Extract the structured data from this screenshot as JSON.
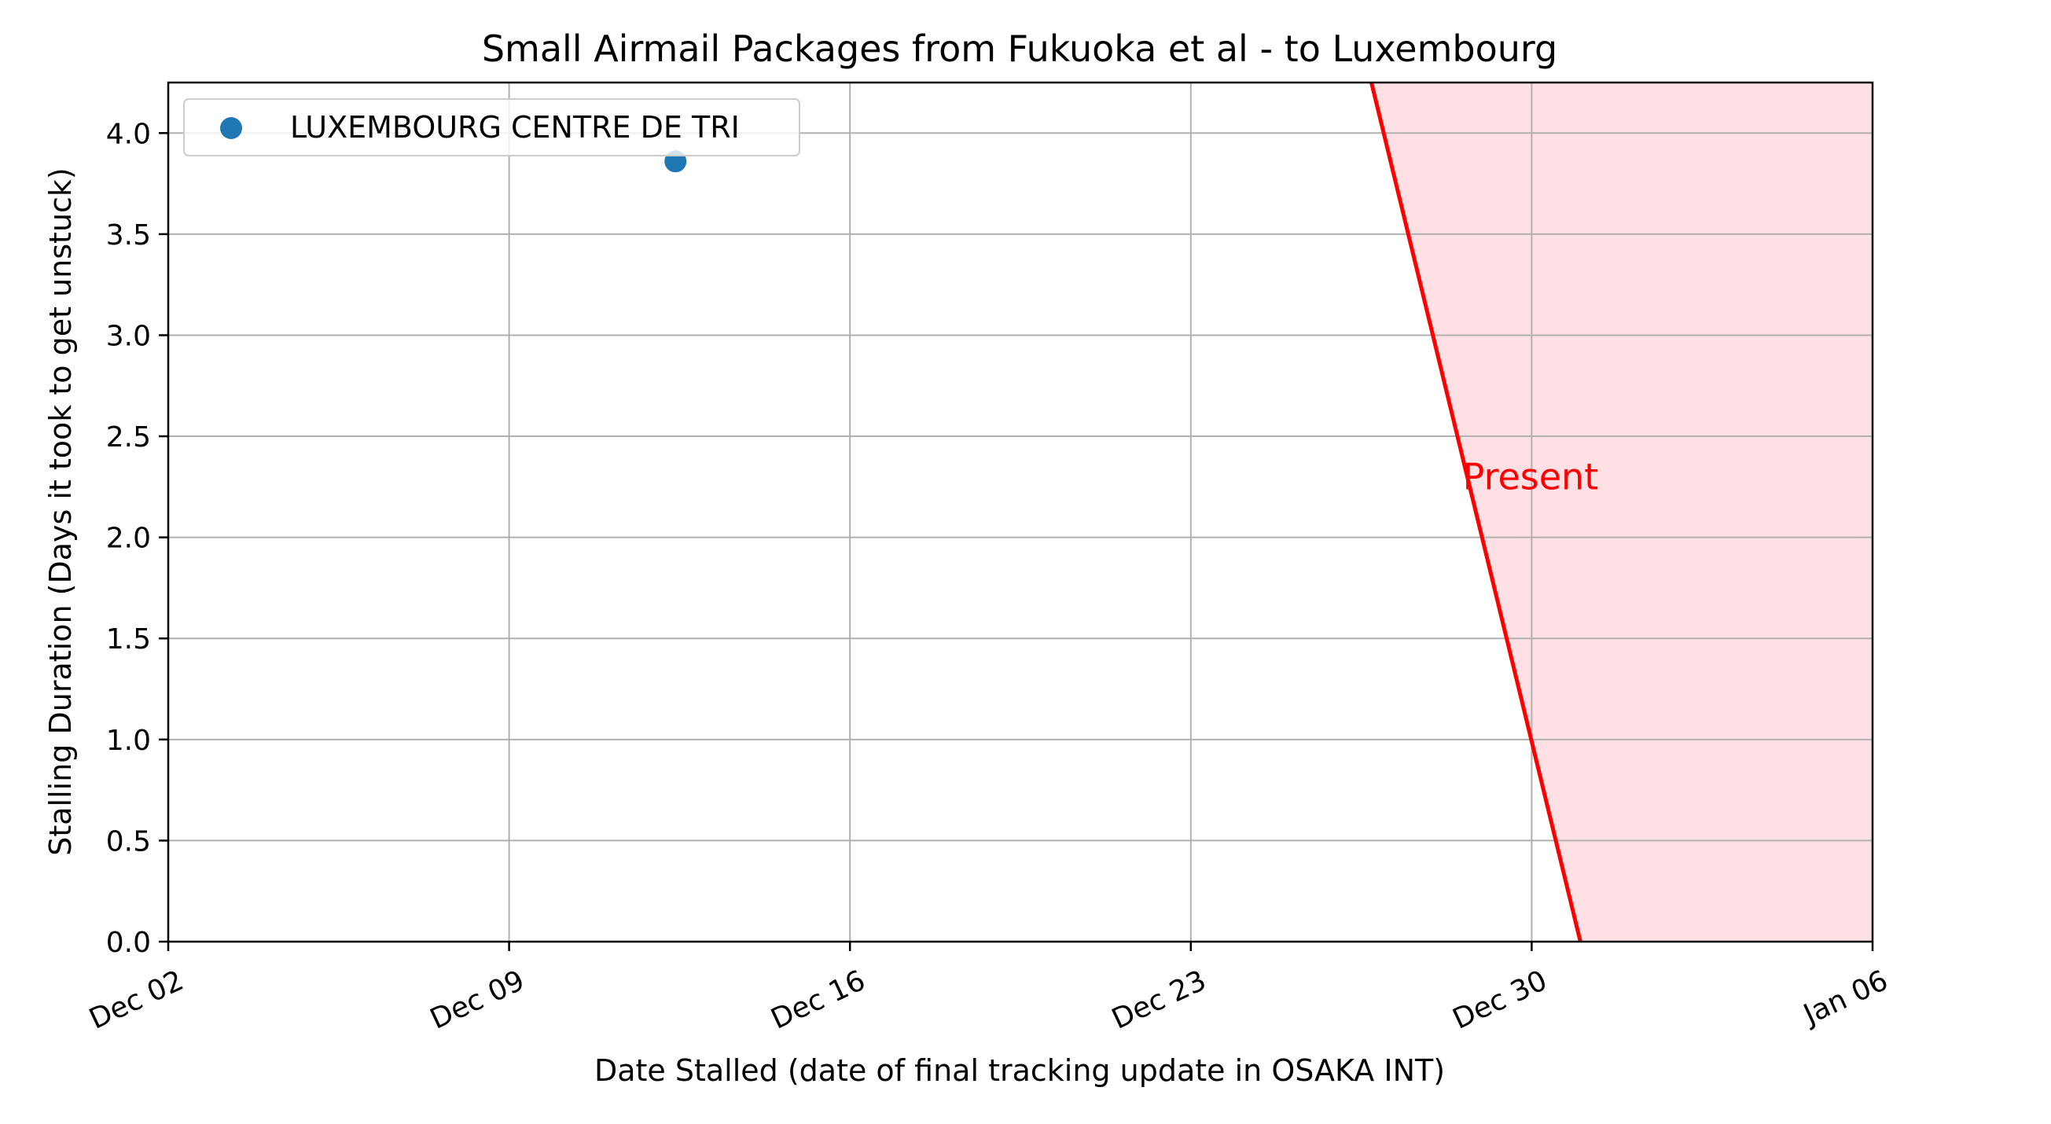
{
  "chart_data": {
    "type": "scatter",
    "title": "Small Airmail Packages from Fukuoka et al - to Luxembourg",
    "xlabel": "Date Stalled (date of final tracking update in OSAKA INT)",
    "ylabel": "Stalling Duration (Days it took to get unstuck)",
    "xlim": [
      "2024-12-02",
      "2025-01-06"
    ],
    "ylim": [
      0,
      4.25
    ],
    "x_ticks": [
      "Dec 02",
      "Dec 09",
      "Dec 16",
      "Dec 23",
      "Dec 30",
      "Jan 06"
    ],
    "y_ticks": [
      "0.0",
      "0.5",
      "1.0",
      "1.5",
      "2.0",
      "2.5",
      "3.0",
      "3.5",
      "4.0"
    ],
    "grid": true,
    "legend_position": "top-left",
    "series": [
      {
        "name": "LUXEMBOURG CENTRE DE TRI",
        "color": "#1f77b4",
        "points": [
          {
            "x": "2024-12-12T10:00",
            "y": 3.86
          }
        ]
      }
    ],
    "present_line": {
      "label": "Present",
      "color": "#ff0000",
      "shade_color": "#ffe0e4",
      "points": [
        {
          "x": "2024-12-26T17:00",
          "y": 4.25
        },
        {
          "x": "2024-12-31T00:00",
          "y": 0
        }
      ]
    },
    "annotation": {
      "text": "Present",
      "x": "2024-12-28T14:00",
      "y": 2.3
    }
  }
}
